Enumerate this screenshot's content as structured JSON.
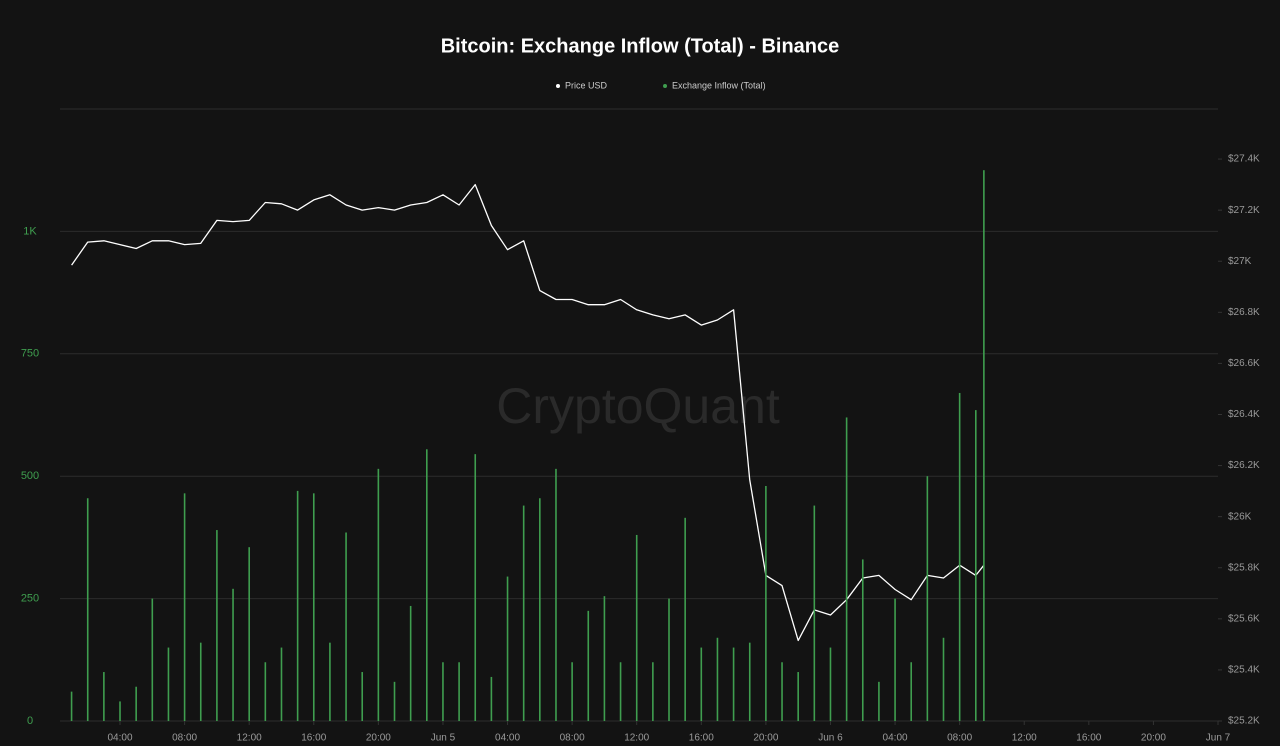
{
  "chart_data": {
    "type": "bar-line",
    "title": "Bitcoin: Exchange Inflow (Total) - Binance",
    "watermark": "CryptoQuant",
    "x": [
      "Jun 4 01:00",
      "Jun 4 02:00",
      "Jun 4 03:00",
      "Jun 4 04:00",
      "Jun 4 05:00",
      "Jun 4 06:00",
      "Jun 4 07:00",
      "Jun 4 08:00",
      "Jun 4 09:00",
      "Jun 4 10:00",
      "Jun 4 11:00",
      "Jun 4 12:00",
      "Jun 4 13:00",
      "Jun 4 14:00",
      "Jun 4 15:00",
      "Jun 4 16:00",
      "Jun 4 17:00",
      "Jun 4 18:00",
      "Jun 4 19:00",
      "Jun 4 20:00",
      "Jun 4 21:00",
      "Jun 4 22:00",
      "Jun 4 23:00",
      "Jun 5 00:00",
      "Jun 5 01:00",
      "Jun 5 02:00",
      "Jun 5 03:00",
      "Jun 5 04:00",
      "Jun 5 05:00",
      "Jun 5 06:00",
      "Jun 5 07:00",
      "Jun 5 08:00",
      "Jun 5 09:00",
      "Jun 5 10:00",
      "Jun 5 11:00",
      "Jun 5 12:00",
      "Jun 5 13:00",
      "Jun 5 14:00",
      "Jun 5 15:00",
      "Jun 5 16:00",
      "Jun 5 17:00",
      "Jun 5 18:00",
      "Jun 5 19:00",
      "Jun 5 20:00",
      "Jun 5 21:00",
      "Jun 5 22:00",
      "Jun 5 23:00",
      "Jun 6 00:00",
      "Jun 6 01:00",
      "Jun 6 02:00",
      "Jun 6 03:00",
      "Jun 6 04:00",
      "Jun 6 05:00",
      "Jun 6 06:00",
      "Jun 6 07:00",
      "Jun 6 08:00",
      "Jun 6 09:00",
      "Jun 6 09:30"
    ],
    "series": [
      {
        "name": "Price USD",
        "color": "#ffffff",
        "axis": "y2",
        "kind": "line",
        "values": [
          26985,
          27075,
          27080,
          27065,
          27050,
          27080,
          27080,
          27065,
          27070,
          27160,
          27155,
          27160,
          27230,
          27225,
          27200,
          27240,
          27260,
          27220,
          27200,
          27210,
          27200,
          27220,
          27230,
          27260,
          27220,
          27300,
          27140,
          27045,
          27080,
          26885,
          26850,
          26850,
          26830,
          26830,
          26850,
          26810,
          26790,
          26775,
          26790,
          26750,
          26770,
          26810,
          26145,
          25770,
          25730,
          25515,
          25635,
          25615,
          25675,
          25760,
          25770,
          25715,
          25675,
          25770,
          25760,
          25810,
          25770,
          25810
        ]
      },
      {
        "name": "Exchange Inflow (Total)",
        "color": "#3f9e4f",
        "kind": "bar",
        "values": [
          60,
          455,
          100,
          40,
          70,
          250,
          150,
          465,
          160,
          390,
          270,
          355,
          120,
          150,
          470,
          465,
          160,
          385,
          100,
          515,
          80,
          235,
          555,
          120,
          120,
          545,
          90,
          295,
          440,
          455,
          515,
          120,
          225,
          255,
          120,
          380,
          120,
          250,
          415,
          150,
          170,
          150,
          160,
          480,
          120,
          100,
          440,
          150,
          620,
          330,
          80,
          250,
          120,
          500,
          170,
          670,
          635,
          1125
        ]
      }
    ],
    "xlim": [
      "Jun 4 00:17",
      "Jun 7 00:00"
    ],
    "xticks": [
      {
        "value": "Jun 4 04:00",
        "label": "04:00"
      },
      {
        "value": "Jun 4 08:00",
        "label": "08:00"
      },
      {
        "value": "Jun 4 12:00",
        "label": "12:00"
      },
      {
        "value": "Jun 4 16:00",
        "label": "16:00"
      },
      {
        "value": "Jun 4 20:00",
        "label": "20:00"
      },
      {
        "value": "Jun 5 00:00",
        "label": "Jun 5"
      },
      {
        "value": "Jun 5 04:00",
        "label": "04:00"
      },
      {
        "value": "Jun 5 08:00",
        "label": "08:00"
      },
      {
        "value": "Jun 5 12:00",
        "label": "12:00"
      },
      {
        "value": "Jun 5 16:00",
        "label": "16:00"
      },
      {
        "value": "Jun 5 20:00",
        "label": "20:00"
      },
      {
        "value": "Jun 6 00:00",
        "label": "Jun 6"
      },
      {
        "value": "Jun 6 04:00",
        "label": "04:00"
      },
      {
        "value": "Jun 6 08:00",
        "label": "08:00"
      },
      {
        "value": "Jun 6 12:00",
        "label": "12:00"
      },
      {
        "value": "Jun 6 16:00",
        "label": "16:00"
      },
      {
        "value": "Jun 6 20:00",
        "label": "20:00"
      },
      {
        "value": "Jun 7 00:00",
        "label": "Jun 7"
      }
    ],
    "ylim": [
      0,
      1250
    ],
    "yticks": [
      0,
      250,
      500,
      750,
      {
        "value": 1000,
        "label": "1K"
      }
    ],
    "y2lim": [
      25200,
      27596
    ],
    "y2ticks": [
      {
        "value": 25200,
        "label": "$25.2K"
      },
      {
        "value": 25400,
        "label": "$25.4K"
      },
      {
        "value": 25600,
        "label": "$25.6K"
      },
      {
        "value": 25800,
        "label": "$25.8K"
      },
      {
        "value": 26000,
        "label": "$26K"
      },
      {
        "value": 26200,
        "label": "$26.2K"
      },
      {
        "value": 26400,
        "label": "$26.4K"
      },
      {
        "value": 26600,
        "label": "$26.6K"
      },
      {
        "value": 26800,
        "label": "$26.8K"
      },
      {
        "value": 27000,
        "label": "$27K"
      },
      {
        "value": 27200,
        "label": "$27.2K"
      },
      {
        "value": 27400,
        "label": "$27.4K"
      }
    ],
    "grid": true
  }
}
